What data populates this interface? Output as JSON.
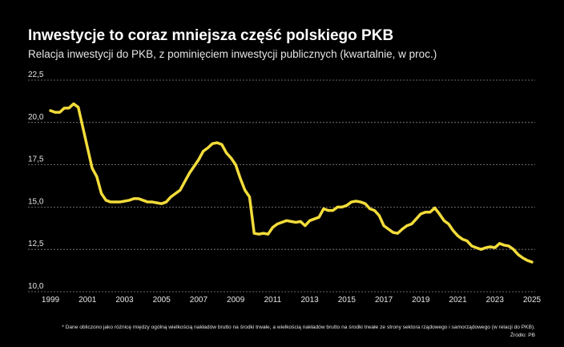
{
  "chart_data": {
    "type": "line",
    "title": "Inwestycje to coraz mniejsza część polskiego PKB",
    "subtitle": "Relacja inwestycji do PKB, z pominięciem inwestycji publicznych (kwartalnie, w proc.)",
    "footnote": "* Dane obliczono jako różnicę między ogólną wielkością nakładów brutto na środki trwałe, a wielkością nakładów brutto na środki trwałe ze strony sektora rządowego i samorządowego (w relacji do PKB).",
    "source": "Źródło: PB",
    "color": "#f2dc3a",
    "grid": true,
    "x": [
      1999,
      1999.25,
      1999.5,
      1999.75,
      2000,
      2000.25,
      2000.5,
      2000.75,
      2001,
      2001.25,
      2001.5,
      2001.75,
      2002,
      2002.25,
      2002.5,
      2002.75,
      2003,
      2003.25,
      2003.5,
      2003.75,
      2004,
      2004.25,
      2004.5,
      2004.75,
      2005,
      2005.25,
      2005.5,
      2005.75,
      2006,
      2006.25,
      2006.5,
      2006.75,
      2007,
      2007.25,
      2007.5,
      2007.75,
      2008,
      2008.25,
      2008.5,
      2008.75,
      2009,
      2009.25,
      2009.5,
      2009.75,
      2010,
      2010.25,
      2010.5,
      2010.75,
      2011,
      2011.25,
      2011.5,
      2011.75,
      2012,
      2012.25,
      2012.5,
      2012.75,
      2013,
      2013.25,
      2013.5,
      2013.75,
      2014,
      2014.25,
      2014.5,
      2014.75,
      2015,
      2015.25,
      2015.5,
      2015.75,
      2016,
      2016.25,
      2016.5,
      2016.75,
      2017,
      2017.25,
      2017.5,
      2017.75,
      2018,
      2018.25,
      2018.5,
      2018.75,
      2019,
      2019.25,
      2019.5,
      2019.75,
      2020,
      2020.25,
      2020.5,
      2020.75,
      2021,
      2021.25,
      2021.5,
      2021.75,
      2022,
      2022.25,
      2022.5,
      2022.75,
      2023,
      2023.25,
      2023.5,
      2023.75,
      2024,
      2024.25,
      2024.5,
      2024.75,
      2025
    ],
    "values": [
      20.7,
      20.6,
      20.6,
      20.85,
      20.85,
      21.1,
      20.9,
      19.7,
      18.5,
      17.3,
      16.8,
      15.8,
      15.4,
      15.3,
      15.3,
      15.3,
      15.35,
      15.4,
      15.5,
      15.5,
      15.4,
      15.3,
      15.3,
      15.25,
      15.2,
      15.3,
      15.6,
      15.8,
      16.0,
      16.5,
      17.0,
      17.4,
      17.8,
      18.3,
      18.5,
      18.75,
      18.8,
      18.7,
      18.2,
      17.9,
      17.5,
      16.7,
      16.0,
      15.6,
      13.45,
      13.4,
      13.45,
      13.4,
      13.8,
      14.0,
      14.1,
      14.2,
      14.15,
      14.1,
      14.15,
      13.9,
      14.2,
      14.3,
      14.4,
      14.9,
      14.8,
      14.8,
      15.0,
      15.0,
      15.1,
      15.3,
      15.35,
      15.3,
      15.2,
      14.9,
      14.8,
      14.5,
      13.9,
      13.7,
      13.5,
      13.45,
      13.7,
      13.9,
      14.0,
      14.3,
      14.6,
      14.7,
      14.7,
      14.95,
      14.6,
      14.2,
      14.0,
      13.6,
      13.3,
      13.1,
      13.0,
      12.7,
      12.6,
      12.5,
      12.6,
      12.65,
      12.6,
      12.85,
      12.75,
      12.7,
      12.5,
      12.2,
      12.0,
      11.85,
      11.75
    ],
    "xlim": [
      1999,
      2025
    ],
    "xticks": [
      1999,
      2001,
      2003,
      2005,
      2007,
      2009,
      2011,
      2013,
      2015,
      2017,
      2019,
      2021,
      2023,
      2025
    ],
    "ylim": [
      10,
      22.5
    ],
    "yticks": [
      {
        "value": 10,
        "label": "10,0"
      },
      {
        "value": 12.5,
        "label": "12,5"
      },
      {
        "value": 15,
        "label": "15,0"
      },
      {
        "value": 17.5,
        "label": "17,5"
      },
      {
        "value": 20,
        "label": "20,0"
      },
      {
        "value": 22.5,
        "label": "22,5"
      }
    ]
  }
}
